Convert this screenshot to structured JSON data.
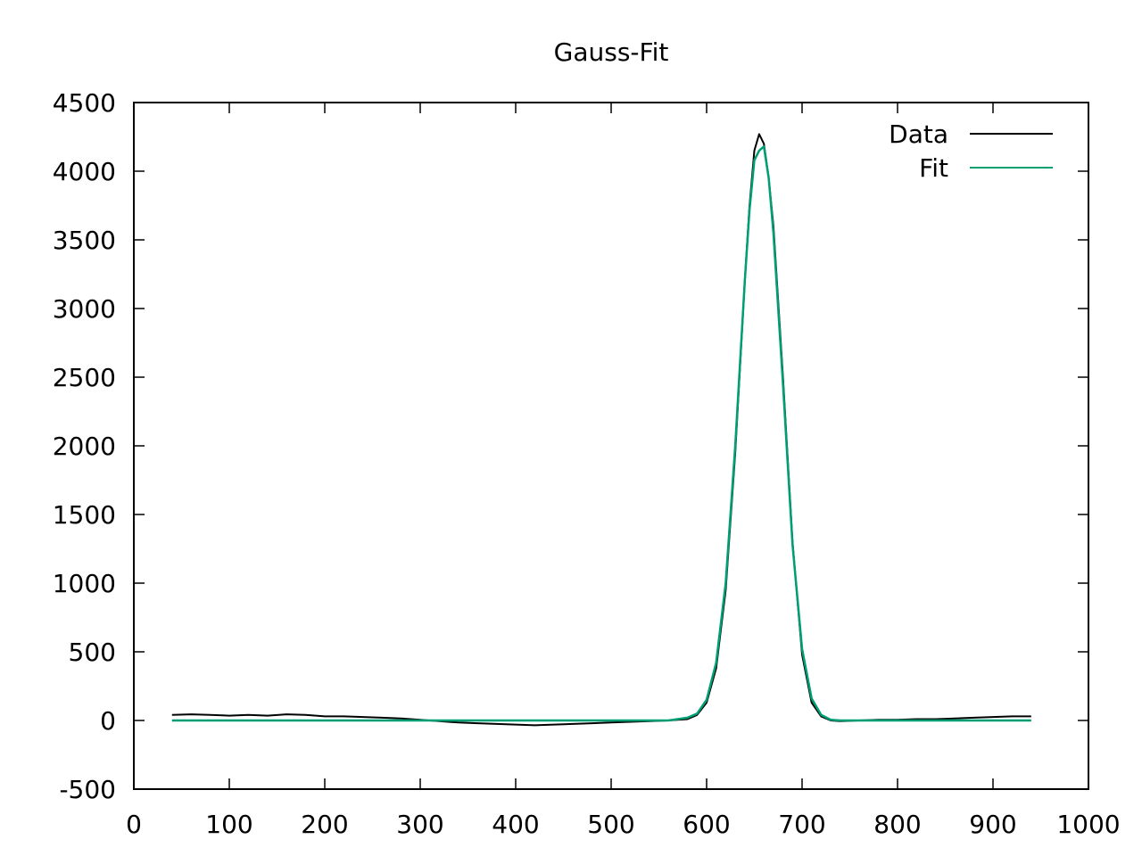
{
  "chart_data": {
    "type": "line",
    "title": "Gauss-Fit",
    "xlabel": "",
    "ylabel": "",
    "xlim": [
      0,
      1000
    ],
    "ylim": [
      -500,
      4500
    ],
    "xticks": [
      0,
      100,
      200,
      300,
      400,
      500,
      600,
      700,
      800,
      900,
      1000
    ],
    "yticks": [
      -500,
      0,
      500,
      1000,
      1500,
      2000,
      2500,
      3000,
      3500,
      4000,
      4500
    ],
    "grid": false,
    "legend_position": "top-right",
    "series": [
      {
        "name": "Data",
        "color": "#000000",
        "x": [
          40,
          60,
          80,
          100,
          120,
          140,
          160,
          180,
          200,
          220,
          240,
          260,
          280,
          300,
          320,
          340,
          360,
          380,
          400,
          420,
          440,
          460,
          480,
          500,
          520,
          540,
          560,
          580,
          590,
          600,
          610,
          620,
          630,
          640,
          645,
          650,
          655,
          660,
          665,
          670,
          680,
          690,
          700,
          710,
          720,
          730,
          740,
          760,
          780,
          800,
          820,
          840,
          860,
          880,
          900,
          920,
          940
        ],
        "y": [
          40,
          45,
          40,
          35,
          40,
          35,
          45,
          40,
          30,
          30,
          25,
          20,
          15,
          5,
          -5,
          -15,
          -20,
          -25,
          -30,
          -35,
          -30,
          -25,
          -20,
          -15,
          -10,
          -5,
          0,
          10,
          40,
          130,
          380,
          950,
          1950,
          3200,
          3750,
          4150,
          4270,
          4200,
          3950,
          3600,
          2500,
          1300,
          480,
          130,
          30,
          0,
          -5,
          0,
          5,
          5,
          10,
          10,
          15,
          20,
          25,
          30,
          30
        ]
      },
      {
        "name": "Fit",
        "color": "#009e73",
        "x": [
          40,
          100,
          200,
          300,
          400,
          500,
          560,
          580,
          590,
          600,
          610,
          620,
          630,
          640,
          645,
          650,
          655,
          660,
          665,
          670,
          680,
          690,
          700,
          710,
          720,
          730,
          740,
          800,
          900,
          940
        ],
        "y": [
          0,
          0,
          0,
          0,
          0,
          0,
          0,
          20,
          50,
          150,
          420,
          1000,
          2000,
          3200,
          3720,
          4080,
          4150,
          4180,
          3950,
          3550,
          2450,
          1280,
          520,
          160,
          40,
          5,
          0,
          0,
          0,
          0
        ]
      }
    ]
  }
}
